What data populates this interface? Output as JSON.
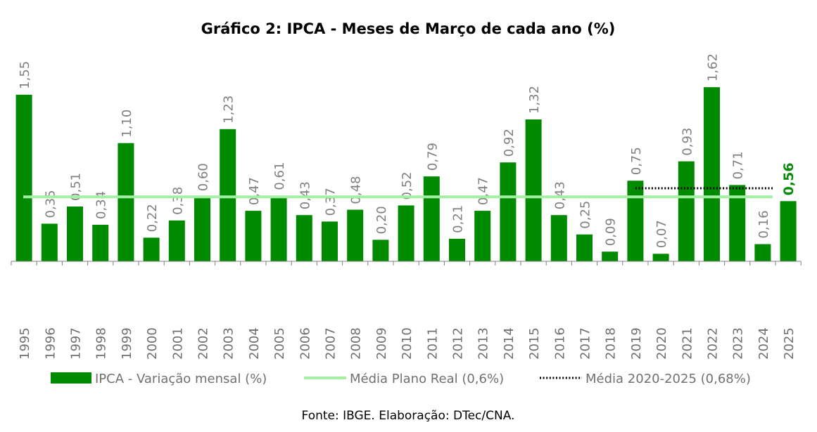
{
  "chart_data": {
    "type": "bar",
    "title": "Gráfico 2: IPCA - Meses de Março de cada ano (%)",
    "xlabel": "",
    "ylabel": "",
    "ylim": [
      0,
      1.62
    ],
    "categories": [
      "1995",
      "1996",
      "1997",
      "1998",
      "1999",
      "2000",
      "2001",
      "2002",
      "2003",
      "2004",
      "2005",
      "2006",
      "2007",
      "2008",
      "2009",
      "2010",
      "2011",
      "2012",
      "2013",
      "2014",
      "2015",
      "2016",
      "2017",
      "2018",
      "2019",
      "2020",
      "2021",
      "2022",
      "2023",
      "2024",
      "2025"
    ],
    "values": [
      1.55,
      0.35,
      0.51,
      0.34,
      1.1,
      0.22,
      0.38,
      0.6,
      1.23,
      0.47,
      0.61,
      0.43,
      0.37,
      0.48,
      0.2,
      0.52,
      0.79,
      0.21,
      0.47,
      0.92,
      1.32,
      0.43,
      0.25,
      0.09,
      0.75,
      0.07,
      0.93,
      1.62,
      0.71,
      0.16,
      0.56
    ],
    "value_labels": [
      "1,55",
      "0,35",
      "0,51",
      "0,34",
      "1,10",
      "0,22",
      "0,38",
      "0,60",
      "1,23",
      "0,47",
      "0,61",
      "0,43",
      "0,37",
      "0,48",
      "0,20",
      "0,52",
      "0,79",
      "0,21",
      "0,47",
      "0,92",
      "1,32",
      "0,43",
      "0,25",
      "0,09",
      "0,75",
      "0,07",
      "0,93",
      "1,62",
      "0,71",
      "0,16",
      "0,56"
    ],
    "highlight_last": true,
    "reference_lines": [
      {
        "name": "Média Plano Real (0,6%)",
        "value": 0.6,
        "from": "1995",
        "to": "2024",
        "style": "solid"
      },
      {
        "name": "Média 2020-2025 (0,68%)",
        "value": 0.68,
        "from": "2019",
        "to": "2024",
        "style": "dotted"
      }
    ],
    "legend": [
      "IPCA - Variação mensal (%)",
      "Média Plano Real (0,6%)",
      "Média 2020-2025 (0,68%)"
    ],
    "legend_position": "bottom",
    "grid": false,
    "source": "Fonte: IBGE. Elaboração: DTec/CNA."
  },
  "colors": {
    "bar": "#008a00",
    "avg_line": "#a3f0a3",
    "dotted": "#000000",
    "label": "#808080",
    "highlight_label": "#0a8a0a"
  }
}
